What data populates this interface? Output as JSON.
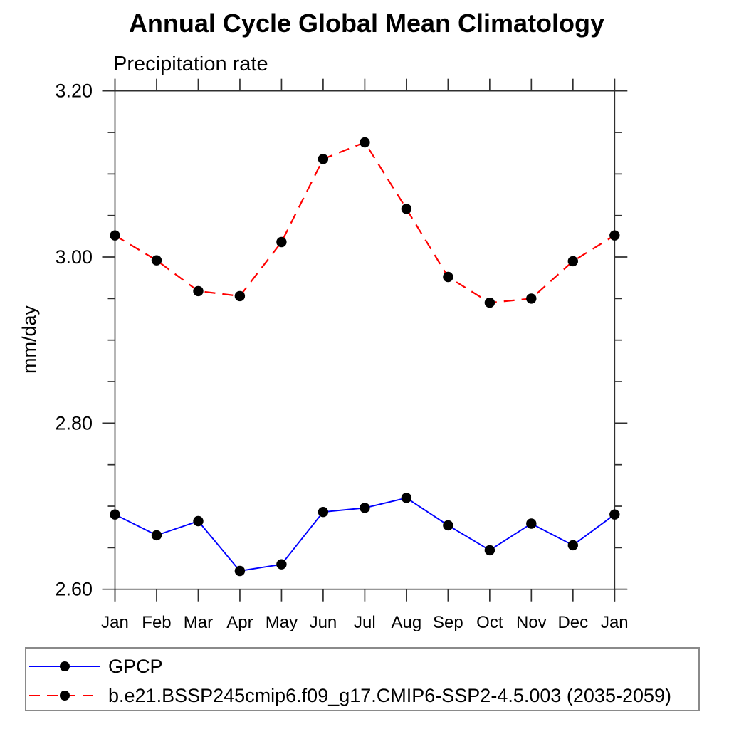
{
  "chart_data": {
    "type": "line",
    "title": "Annual Cycle Global Mean Climatology",
    "subtitle": "Precipitation rate",
    "ylabel": "mm/day",
    "xlabel": "",
    "categories": [
      "Jan",
      "Feb",
      "Mar",
      "Apr",
      "May",
      "Jun",
      "Jul",
      "Aug",
      "Sep",
      "Oct",
      "Nov",
      "Dec",
      "Jan"
    ],
    "ylim": [
      2.6,
      3.2
    ],
    "ytick_major": [
      3.2,
      3.0,
      2.8,
      2.6
    ],
    "ytick_minor_step": 0.05,
    "grid": false,
    "legend_position": "bottom-left-box",
    "axis_color": "#2f2f2f",
    "marker_color": "#000000",
    "series": [
      {
        "name": "GPCP",
        "color": "#0000ff",
        "line_style": "solid",
        "marker": "circle",
        "values": [
          2.69,
          2.665,
          2.682,
          2.622,
          2.63,
          2.693,
          2.698,
          2.71,
          2.677,
          2.647,
          2.679,
          2.653,
          2.69
        ]
      },
      {
        "name": "b.e21.BSSP245cmip6.f09_g17.CMIP6-SSP2-4.5.003 (2035-2059)",
        "color": "#ff0000",
        "line_style": "dashed",
        "marker": "circle",
        "values": [
          3.026,
          2.996,
          2.959,
          2.953,
          3.018,
          3.118,
          3.138,
          3.058,
          2.976,
          2.945,
          2.95,
          2.995,
          3.026
        ]
      }
    ]
  }
}
